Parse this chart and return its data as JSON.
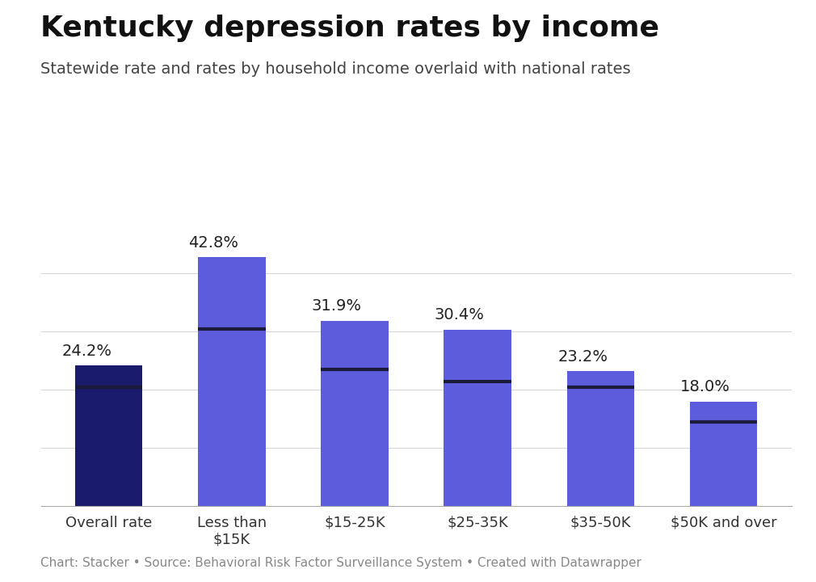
{
  "title": "Kentucky depression rates by income",
  "subtitle": "Statewide rate and rates by household income overlaid with national rates",
  "caption": "Chart: Stacker • Source: Behavioral Risk Factor Surveillance System • Created with Datawrapper",
  "categories": [
    "Overall rate",
    "Less than\n$15K",
    "$15-25K",
    "$25-35K",
    "$35-50K",
    "$50K and over"
  ],
  "values": [
    24.2,
    42.8,
    31.9,
    30.4,
    23.2,
    18.0
  ],
  "bar_colors": [
    "#1b1b6b",
    "#5c5cdd",
    "#5c5cdd",
    "#5c5cdd",
    "#5c5cdd",
    "#5c5cdd"
  ],
  "national_line_values": [
    20.5,
    30.5,
    23.5,
    21.5,
    20.5,
    14.5
  ],
  "label_format": [
    "24.2%",
    "42.8%",
    "31.9%",
    "30.4%",
    "23.2%",
    "18.0%"
  ],
  "background_color": "#ffffff",
  "title_fontsize": 26,
  "subtitle_fontsize": 14,
  "caption_fontsize": 11,
  "bar_label_fontsize": 14,
  "tick_label_fontsize": 13,
  "ylim": [
    0,
    50
  ],
  "grid_color": "#d8d8d8",
  "line_color": "#1a1a3a",
  "line_width": 3.0
}
